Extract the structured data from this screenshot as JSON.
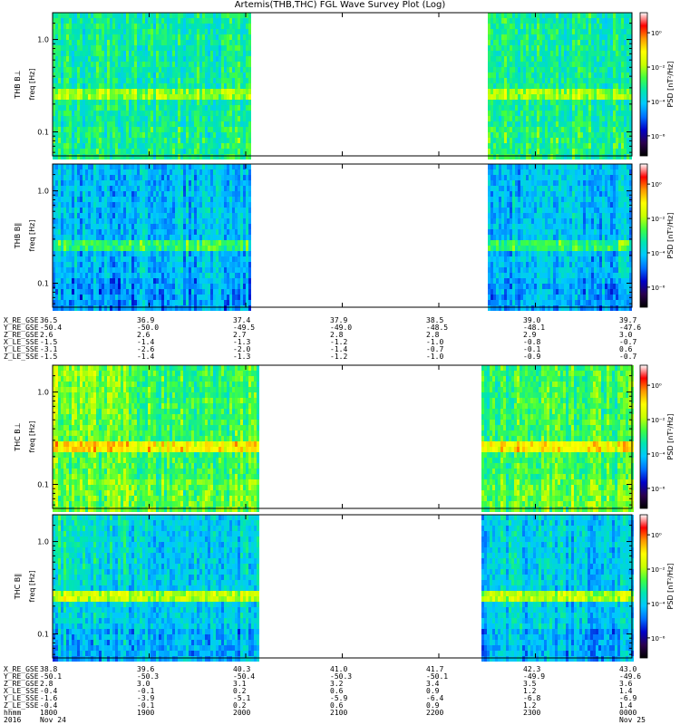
{
  "title": "Artemis(THB,THC) FGL Wave Survey Plot (Log)",
  "colormap_stops": [
    "#000000",
    "#2a004f",
    "#0000c8",
    "#0070ff",
    "#00c8ff",
    "#00e6b0",
    "#40ff40",
    "#c8ff00",
    "#ffff00",
    "#ff9a00",
    "#ff0000",
    "#ffffff"
  ],
  "chart_data": [
    {
      "type": "heatmap",
      "panel": "THB B_L",
      "ylabel_spacecraft": "THB B⊥",
      "ylabel": "freq [Hz]",
      "yscale": "log",
      "yticks": [
        "1.0",
        "0.1"
      ],
      "colorbar": {
        "label": "PSD [nT²/Hz]",
        "scale": "log",
        "ticks": [
          "10⁰",
          "10⁻²",
          "10⁻⁴",
          "10⁻⁶"
        ],
        "range": [
          1e-07,
          10
        ]
      },
      "data_gaps": [
        [
          37.4,
          38.75
        ]
      ],
      "dominant_band_hz": 0.25,
      "background_level": "green"
    },
    {
      "type": "heatmap",
      "panel": "THB B_parallel",
      "ylabel_spacecraft": "THB B∥",
      "ylabel": "freq [Hz]",
      "yscale": "log",
      "yticks": [
        "1.0",
        "0.1"
      ],
      "colorbar": {
        "label": "PSD [nT²/Hz]",
        "scale": "log",
        "ticks": [
          "10⁰",
          "10⁻²",
          "10⁻⁴",
          "10⁻⁶"
        ],
        "range": [
          1e-07,
          10
        ]
      },
      "data_gaps": [
        [
          37.4,
          38.75
        ]
      ],
      "dominant_band_hz": 0.25,
      "background_level": "blue"
    },
    {
      "type": "heatmap",
      "panel": "THC B_L",
      "ylabel_spacecraft": "THC B⊥",
      "ylabel": "freq [Hz]",
      "yscale": "log",
      "yticks": [
        "1.0",
        "0.1"
      ],
      "colorbar": {
        "label": "PSD [nT²/Hz]",
        "scale": "log",
        "ticks": [
          "10⁰",
          "10⁻²",
          "10⁻⁴",
          "10⁻⁶"
        ],
        "range": [
          1e-07,
          10
        ]
      },
      "data_gaps": [
        [
          40.35,
          42.0
        ]
      ],
      "dominant_band_hz": 0.25,
      "background_level": "green"
    },
    {
      "type": "heatmap",
      "panel": "THC B_parallel",
      "ylabel_spacecraft": "THC B∥",
      "ylabel": "freq [Hz]",
      "yscale": "log",
      "yticks": [
        "1.0",
        "0.1"
      ],
      "colorbar": {
        "label": "PSD [nT²/Hz]",
        "scale": "log",
        "ticks": [
          "10⁰",
          "10⁻²",
          "10⁻⁴",
          "10⁻⁶"
        ],
        "range": [
          1e-07,
          10
        ]
      },
      "data_gaps": [
        [
          40.35,
          42.0
        ]
      ],
      "dominant_band_hz": 0.25,
      "background_level": "blue"
    }
  ],
  "ephemeris": [
    {
      "labels": [
        "X_RE_GSE",
        "Y_RE_GSE",
        "Z_RE_GSE",
        "X_LE_SSE",
        "Y_LE_SSE",
        "Z_LE_SSE"
      ],
      "columns": [
        [
          "36.5",
          "-50.4",
          "2.6",
          "-1.5",
          "-3.1",
          "-1.5"
        ],
        [
          "36.9",
          "-50.0",
          "2.6",
          "-1.4",
          "-2.6",
          "-1.4"
        ],
        [
          "37.4",
          "-49.5",
          "2.7",
          "-1.3",
          "-2.0",
          "-1.3"
        ],
        [
          "37.9",
          "-49.0",
          "2.8",
          "-1.2",
          "-1.4",
          "-1.2"
        ],
        [
          "38.5",
          "-48.5",
          "2.8",
          "-1.0",
          "-0.7",
          "-1.0"
        ],
        [
          "39.0",
          "-48.1",
          "2.9",
          "-0.8",
          "-0.1",
          "-0.9"
        ],
        [
          "39.7",
          "-47.6",
          "3.0",
          "-0.7",
          "0.6",
          "-0.7"
        ]
      ]
    },
    {
      "labels": [
        "X_RE_GSE",
        "Y_RE_GSE",
        "Z_RE_GSE",
        "X_LE_SSE",
        "Y_LE_SSE",
        "Z_LE_SSE",
        "hhmm",
        "2016"
      ],
      "columns": [
        [
          "38.8",
          "-50.1",
          "2.8",
          "-0.4",
          "-1.6",
          "-0.4",
          "1800",
          "Nov 24"
        ],
        [
          "39.6",
          "-50.3",
          "3.0",
          "-0.1",
          "-3.9",
          "-0.1",
          "1900",
          ""
        ],
        [
          "40.3",
          "-50.4",
          "3.1",
          "0.2",
          "-5.1",
          "0.2",
          "2000",
          ""
        ],
        [
          "41.0",
          "-50.3",
          "3.2",
          "0.6",
          "-5.9",
          "0.6",
          "2100",
          ""
        ],
        [
          "41.7",
          "-50.1",
          "3.4",
          "0.9",
          "-6.4",
          "0.9",
          "2200",
          ""
        ],
        [
          "42.3",
          "-49.9",
          "3.5",
          "1.2",
          "-6.8",
          "1.2",
          "2300",
          ""
        ],
        [
          "43.0",
          "-49.6",
          "3.6",
          "1.4",
          "-6.9",
          "1.4",
          "0000",
          "Nov 25"
        ]
      ]
    }
  ]
}
